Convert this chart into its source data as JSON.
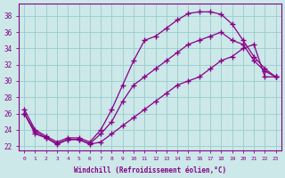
{
  "bg_color": "#cce8e8",
  "line_color": "#880088",
  "grid_color": "#99cccc",
  "xlabel": "Windchill (Refroidissement éolien,°C)",
  "xlim_min": -0.5,
  "xlim_max": 23.5,
  "ylim_min": 21.5,
  "ylim_max": 39.5,
  "yticks": [
    22,
    24,
    26,
    28,
    30,
    32,
    34,
    36,
    38
  ],
  "xticks": [
    0,
    1,
    2,
    3,
    4,
    5,
    6,
    7,
    8,
    9,
    10,
    11,
    12,
    13,
    14,
    15,
    16,
    17,
    18,
    19,
    20,
    21,
    22,
    23
  ],
  "curve_top_x": [
    0,
    1,
    2,
    3,
    4,
    5,
    6,
    7,
    8,
    9,
    10,
    11,
    12,
    13,
    14,
    15,
    16,
    17,
    18,
    19,
    20,
    21,
    22,
    23
  ],
  "curve_top_y": [
    26.5,
    24.0,
    23.2,
    22.5,
    23.0,
    23.0,
    22.5,
    24.0,
    26.5,
    29.5,
    32.5,
    35.0,
    35.5,
    36.5,
    37.5,
    38.3,
    38.5,
    38.5,
    38.2,
    37.0,
    35.0,
    33.0,
    31.5,
    30.5
  ],
  "curve_mid_x": [
    0,
    1,
    2,
    3,
    4,
    5,
    6,
    7,
    8,
    9,
    10,
    11,
    12,
    13,
    14,
    15,
    16,
    17,
    18,
    19,
    20,
    21,
    22,
    23
  ],
  "curve_mid_y": [
    26.0,
    23.8,
    23.0,
    22.3,
    22.8,
    22.8,
    22.3,
    23.5,
    25.0,
    27.5,
    29.5,
    30.5,
    31.5,
    32.5,
    33.5,
    34.5,
    35.0,
    35.5,
    36.0,
    35.0,
    34.5,
    32.5,
    31.2,
    30.5
  ],
  "curve_bot_x": [
    0,
    1,
    2,
    3,
    4,
    5,
    6,
    7,
    8,
    9,
    10,
    11,
    12,
    13,
    14,
    15,
    16,
    17,
    18,
    19,
    20,
    21,
    22,
    23
  ],
  "curve_bot_y": [
    26.0,
    23.5,
    23.0,
    22.2,
    22.8,
    22.8,
    22.2,
    22.5,
    23.5,
    24.5,
    25.5,
    26.5,
    27.5,
    28.5,
    29.5,
    30.0,
    30.5,
    31.5,
    32.5,
    33.0,
    34.0,
    34.5,
    30.5,
    30.5
  ]
}
